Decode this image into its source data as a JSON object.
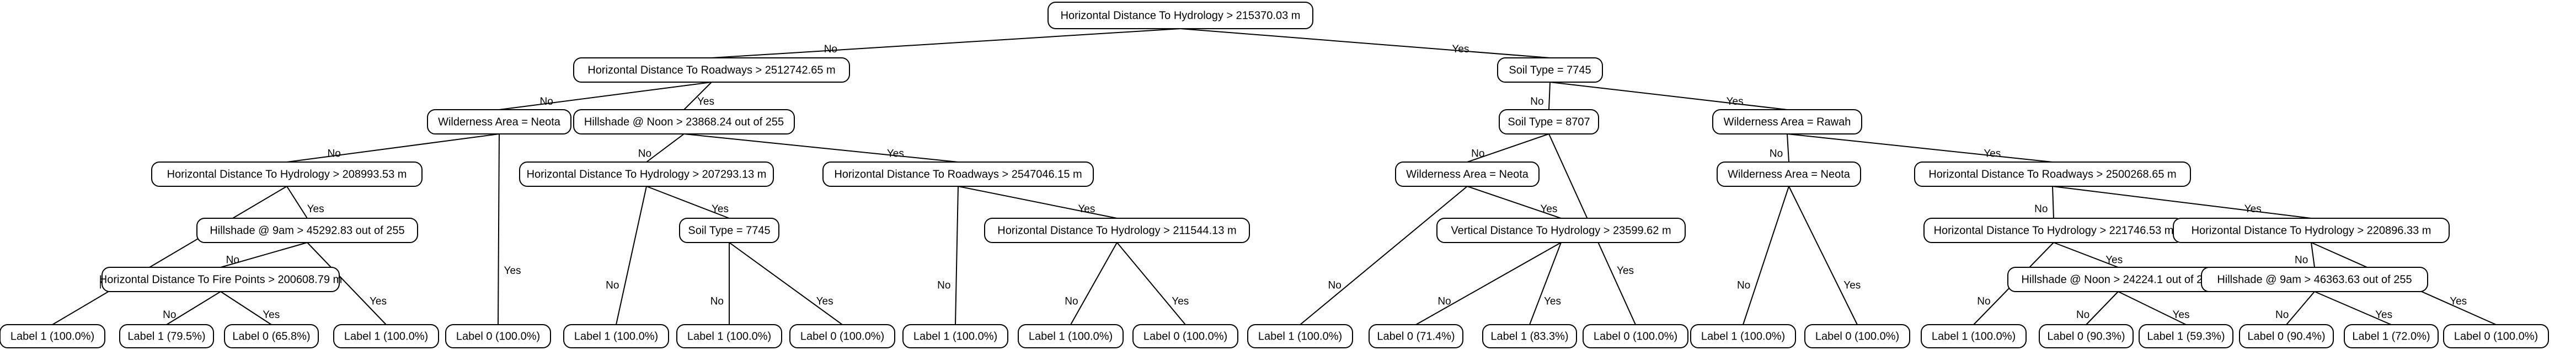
{
  "nodes": [
    {
      "id": "n0",
      "label": "Horizontal Distance To Hydrology > 215370.03 m"
    },
    {
      "id": "n1",
      "label": "Horizontal Distance To Roadways > 2512742.65 m"
    },
    {
      "id": "n2",
      "label": "Soil Type = 7745"
    },
    {
      "id": "n3",
      "label": "Wilderness Area = Neota"
    },
    {
      "id": "n4",
      "label": "Hillshade @ Noon > 23868.24 out of 255"
    },
    {
      "id": "n5",
      "label": "Horizontal Distance To Hydrology > 208993.53 m"
    },
    {
      "id": "n6",
      "label": "Hillshade @ 9am > 45292.83 out of 255"
    },
    {
      "id": "n7",
      "label": "Horizontal Distance To Fire Points > 200608.79 m"
    },
    {
      "id": "n8",
      "label": "Horizontal Distance To Hydrology > 207293.13 m"
    },
    {
      "id": "n9",
      "label": "Soil Type = 7745"
    },
    {
      "id": "n10",
      "label": "Horizontal Distance To Roadways > 2547046.15 m"
    },
    {
      "id": "n11",
      "label": "Horizontal Distance To Hydrology > 211544.13 m"
    },
    {
      "id": "n12",
      "label": "Soil Type = 8707"
    },
    {
      "id": "n13",
      "label": "Wilderness Area = Rawah"
    },
    {
      "id": "n14",
      "label": "Wilderness Area = Neota"
    },
    {
      "id": "n15",
      "label": "Vertical Distance To Hydrology > 23599.62 m"
    },
    {
      "id": "n16",
      "label": "Wilderness Area = Neota"
    },
    {
      "id": "n17",
      "label": "Horizontal Distance To Roadways > 2500268.65 m"
    },
    {
      "id": "n18",
      "label": "Horizontal Distance To Hydrology > 221746.53 m"
    },
    {
      "id": "n19",
      "label": "Hillshade @ Noon > 24224.1 out of 255"
    },
    {
      "id": "n20",
      "label": "Horizontal Distance To Hydrology > 220896.33 m"
    },
    {
      "id": "n21",
      "label": "Hillshade @ 9am > 46363.63 out of 255"
    },
    {
      "id": "l1",
      "label": "Label 1 (100.0%)"
    },
    {
      "id": "l2",
      "label": "Label 1 (79.5%)"
    },
    {
      "id": "l3",
      "label": "Label 0 (65.8%)"
    },
    {
      "id": "l4",
      "label": "Label 1 (100.0%)"
    },
    {
      "id": "l5",
      "label": "Label 0 (100.0%)"
    },
    {
      "id": "l6",
      "label": "Label 1 (100.0%)"
    },
    {
      "id": "l7",
      "label": "Label 1 (100.0%)"
    },
    {
      "id": "l8",
      "label": "Label 0 (100.0%)"
    },
    {
      "id": "l9",
      "label": "Label 1 (100.0%)"
    },
    {
      "id": "l10",
      "label": "Label 1 (100.0%)"
    },
    {
      "id": "l11",
      "label": "Label 0 (100.0%)"
    },
    {
      "id": "l12",
      "label": "Label 1 (100.0%)"
    },
    {
      "id": "l13",
      "label": "Label 0 (71.4%)"
    },
    {
      "id": "l14",
      "label": "Label 1 (83.3%)"
    },
    {
      "id": "l15",
      "label": "Label 0 (100.0%)"
    },
    {
      "id": "l16",
      "label": "Label 1 (100.0%)"
    },
    {
      "id": "l17",
      "label": "Label 0 (100.0%)"
    },
    {
      "id": "l18",
      "label": "Label 1 (100.0%)"
    },
    {
      "id": "l19",
      "label": "Label 0 (90.3%)"
    },
    {
      "id": "l20",
      "label": "Label 1 (59.3%)"
    },
    {
      "id": "l21",
      "label": "Label 0 (90.4%)"
    },
    {
      "id": "l22",
      "label": "Label 1 (72.0%)"
    },
    {
      "id": "l23",
      "label": "Label 0 (100.0%)"
    }
  ],
  "edges": [
    {
      "from": "n0",
      "to": "n1",
      "label": "No"
    },
    {
      "from": "n0",
      "to": "n2",
      "label": "Yes"
    },
    {
      "from": "n1",
      "to": "n3",
      "label": "No"
    },
    {
      "from": "n1",
      "to": "n4",
      "label": "Yes"
    },
    {
      "from": "n3",
      "to": "n5",
      "label": "No"
    },
    {
      "from": "n3",
      "to": "l5",
      "label": "Yes"
    },
    {
      "from": "n5",
      "to": "l1",
      "label": "No"
    },
    {
      "from": "n5",
      "to": "n6",
      "label": "Yes"
    },
    {
      "from": "n6",
      "to": "n7",
      "label": "No"
    },
    {
      "from": "n6",
      "to": "l4",
      "label": "Yes"
    },
    {
      "from": "n7",
      "to": "l2",
      "label": "No"
    },
    {
      "from": "n7",
      "to": "l3",
      "label": "Yes"
    },
    {
      "from": "n4",
      "to": "n8",
      "label": "No"
    },
    {
      "from": "n4",
      "to": "n10",
      "label": "Yes"
    },
    {
      "from": "n8",
      "to": "l6",
      "label": "No"
    },
    {
      "from": "n8",
      "to": "n9",
      "label": "Yes"
    },
    {
      "from": "n9",
      "to": "l7",
      "label": "No"
    },
    {
      "from": "n9",
      "to": "l8",
      "label": "Yes"
    },
    {
      "from": "n10",
      "to": "l9",
      "label": "No"
    },
    {
      "from": "n10",
      "to": "n11",
      "label": "Yes"
    },
    {
      "from": "n11",
      "to": "l10",
      "label": "No"
    },
    {
      "from": "n11",
      "to": "l11",
      "label": "Yes"
    },
    {
      "from": "n2",
      "to": "n12",
      "label": "No"
    },
    {
      "from": "n2",
      "to": "n13",
      "label": "Yes"
    },
    {
      "from": "n12",
      "to": "n14",
      "label": "No"
    },
    {
      "from": "n12",
      "to": "l15",
      "label": "Yes"
    },
    {
      "from": "n14",
      "to": "l12",
      "label": "No"
    },
    {
      "from": "n14",
      "to": "n15",
      "label": "Yes"
    },
    {
      "from": "n15",
      "to": "l13",
      "label": "No"
    },
    {
      "from": "n15",
      "to": "l14",
      "label": "Yes"
    },
    {
      "from": "n13",
      "to": "n16",
      "label": "No"
    },
    {
      "from": "n13",
      "to": "n17",
      "label": "Yes"
    },
    {
      "from": "n16",
      "to": "l16",
      "label": "No"
    },
    {
      "from": "n16",
      "to": "l17",
      "label": "Yes"
    },
    {
      "from": "n17",
      "to": "n18",
      "label": "No"
    },
    {
      "from": "n17",
      "to": "n20",
      "label": "Yes"
    },
    {
      "from": "n18",
      "to": "l18",
      "label": "No"
    },
    {
      "from": "n18",
      "to": "n19",
      "label": "Yes"
    },
    {
      "from": "n19",
      "to": "l19",
      "label": "No"
    },
    {
      "from": "n19",
      "to": "l20",
      "label": "Yes"
    },
    {
      "from": "n20",
      "to": "n21",
      "label": "No"
    },
    {
      "from": "n20",
      "to": "l23",
      "label": "Yes"
    },
    {
      "from": "n21",
      "to": "l21",
      "label": "No"
    },
    {
      "from": "n21",
      "to": "l22",
      "label": "Yes"
    }
  ]
}
